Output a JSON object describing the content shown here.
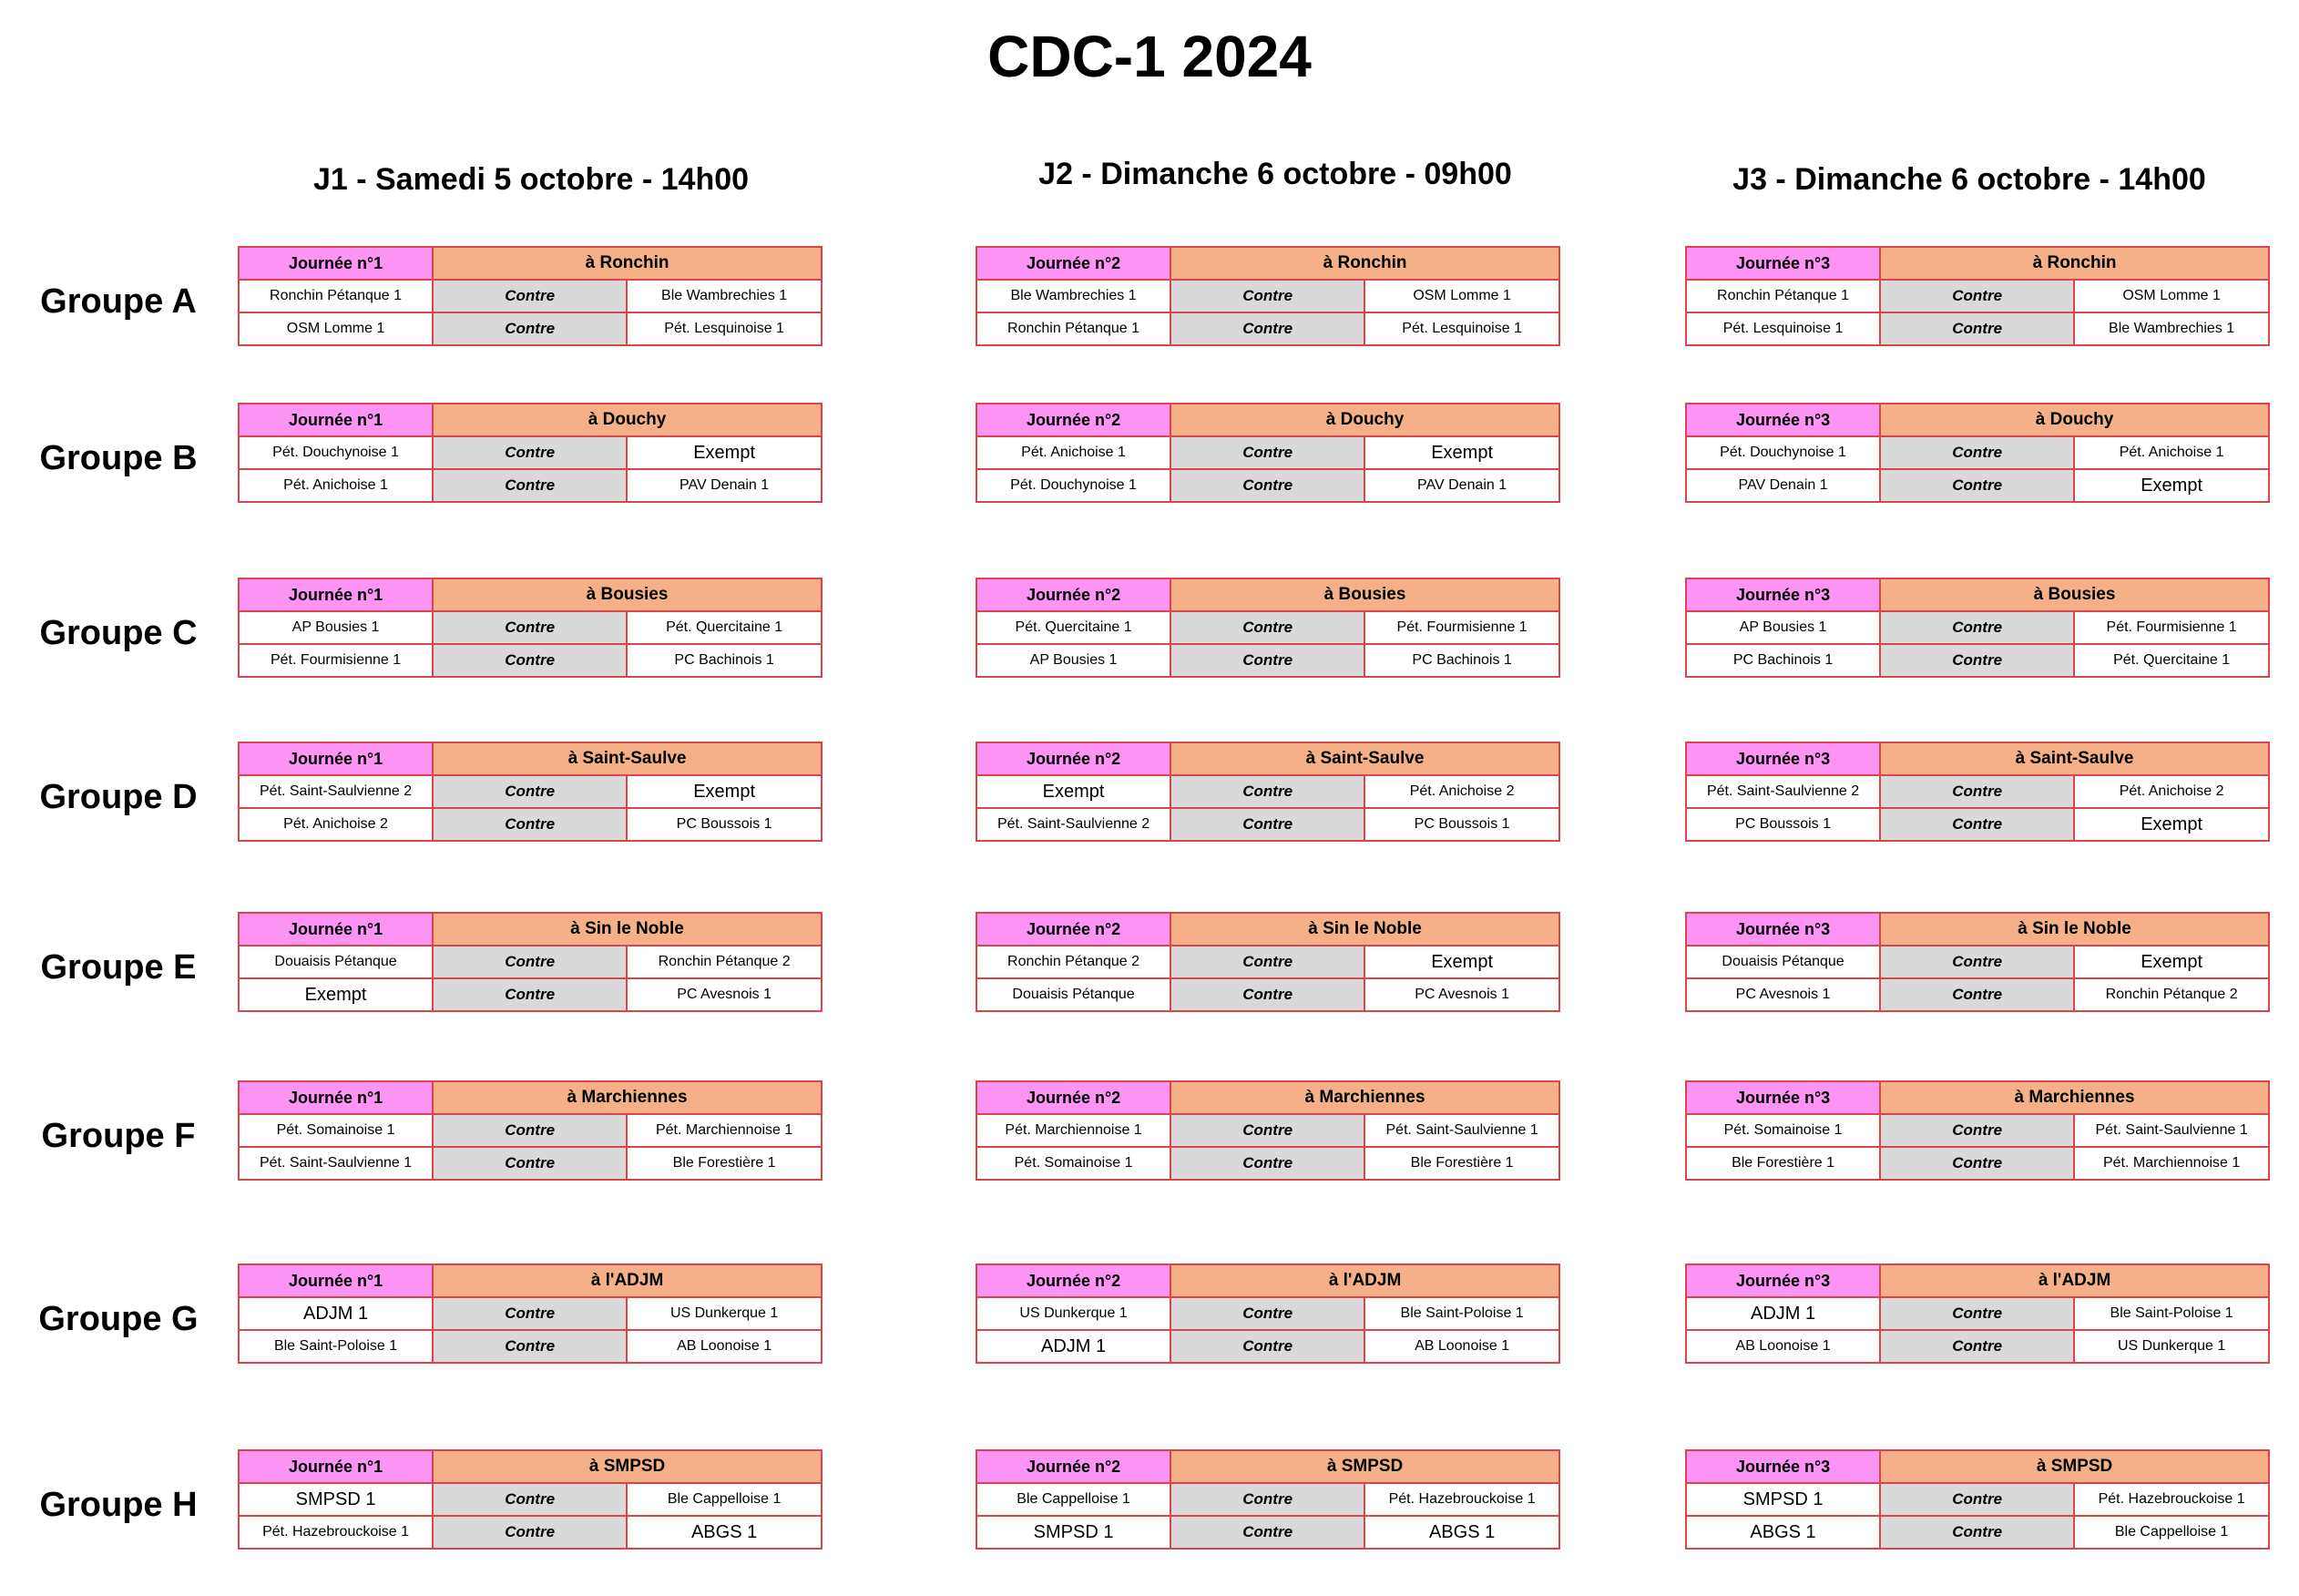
{
  "title": "CDC-1 2024",
  "days": [
    "J1 - Samedi 5 octobre - 14h00",
    "J2 - Dimanche 6 octobre - 09h00",
    "J3 - Dimanche 6 octobre - 14h00"
  ],
  "groups": [
    {
      "name": "Groupe A",
      "tables": [
        {
          "journee": "Journée n°1",
          "venue": "à Ronchin",
          "matches": [
            {
              "home": "Ronchin Pétanque 1",
              "vs": "Contre",
              "away": "Ble Wambrechies 1"
            },
            {
              "home": "OSM Lomme 1",
              "vs": "Contre",
              "away": "Pét. Lesquinoise 1"
            }
          ]
        },
        {
          "journee": "Journée n°2",
          "venue": "à Ronchin",
          "matches": [
            {
              "home": "Ble Wambrechies 1",
              "vs": "Contre",
              "away": "OSM Lomme 1"
            },
            {
              "home": "Ronchin Pétanque 1",
              "vs": "Contre",
              "away": "Pét. Lesquinoise 1"
            }
          ]
        },
        {
          "journee": "Journée n°3",
          "venue": "à Ronchin",
          "matches": [
            {
              "home": "Ronchin Pétanque 1",
              "vs": "Contre",
              "away": "OSM Lomme 1"
            },
            {
              "home": "Pét. Lesquinoise 1",
              "vs": "Contre",
              "away": "Ble Wambrechies 1"
            }
          ]
        }
      ]
    },
    {
      "name": "Groupe B",
      "tables": [
        {
          "journee": "Journée n°1",
          "venue": "à Douchy",
          "matches": [
            {
              "home": "Pét. Douchynoise 1",
              "vs": "Contre",
              "away": "Exempt"
            },
            {
              "home": "Pét. Anichoise 1",
              "vs": "Contre",
              "away": "PAV Denain 1"
            }
          ]
        },
        {
          "journee": "Journée n°2",
          "venue": "à Douchy",
          "matches": [
            {
              "home": "Pét. Anichoise 1",
              "vs": "Contre",
              "away": "Exempt"
            },
            {
              "home": "Pét. Douchynoise 1",
              "vs": "Contre",
              "away": "PAV Denain 1"
            }
          ]
        },
        {
          "journee": "Journée n°3",
          "venue": "à Douchy",
          "matches": [
            {
              "home": "Pét. Douchynoise 1",
              "vs": "Contre",
              "away": "Pét. Anichoise 1"
            },
            {
              "home": "PAV Denain 1",
              "vs": "Contre",
              "away": "Exempt"
            }
          ]
        }
      ]
    },
    {
      "name": "Groupe C",
      "tables": [
        {
          "journee": "Journée n°1",
          "venue": "à Bousies",
          "matches": [
            {
              "home": "AP Bousies 1",
              "vs": "Contre",
              "away": "Pét. Quercitaine 1"
            },
            {
              "home": "Pét. Fourmisienne 1",
              "vs": "Contre",
              "away": "PC Bachinois 1"
            }
          ]
        },
        {
          "journee": "Journée n°2",
          "venue": "à Bousies",
          "matches": [
            {
              "home": "Pét. Quercitaine 1",
              "vs": "Contre",
              "away": "Pét. Fourmisienne 1"
            },
            {
              "home": "AP Bousies 1",
              "vs": "Contre",
              "away": "PC Bachinois 1"
            }
          ]
        },
        {
          "journee": "Journée n°3",
          "venue": "à Bousies",
          "matches": [
            {
              "home": "AP Bousies 1",
              "vs": "Contre",
              "away": "Pét. Fourmisienne 1"
            },
            {
              "home": "PC Bachinois 1",
              "vs": "Contre",
              "away": "Pét. Quercitaine 1"
            }
          ]
        }
      ]
    },
    {
      "name": "Groupe D",
      "tables": [
        {
          "journee": "Journée n°1",
          "venue": "à Saint-Saulve",
          "matches": [
            {
              "home": "Pét. Saint-Saulvienne 2",
              "vs": "Contre",
              "away": "Exempt"
            },
            {
              "home": "Pét. Anichoise 2",
              "vs": "Contre",
              "away": "PC Boussois 1"
            }
          ]
        },
        {
          "journee": "Journée n°2",
          "venue": "à Saint-Saulve",
          "matches": [
            {
              "home": "Exempt",
              "vs": "Contre",
              "away": "Pét. Anichoise 2"
            },
            {
              "home": "Pét. Saint-Saulvienne 2",
              "vs": "Contre",
              "away": "PC Boussois 1"
            }
          ]
        },
        {
          "journee": "Journée n°3",
          "venue": "à Saint-Saulve",
          "matches": [
            {
              "home": "Pét. Saint-Saulvienne 2",
              "vs": "Contre",
              "away": "Pét. Anichoise 2"
            },
            {
              "home": "PC Boussois 1",
              "vs": "Contre",
              "away": "Exempt"
            }
          ]
        }
      ]
    },
    {
      "name": "Groupe E",
      "tables": [
        {
          "journee": "Journée n°1",
          "venue": "à Sin le Noble",
          "matches": [
            {
              "home": "Douaisis Pétanque",
              "vs": "Contre",
              "away": "Ronchin Pétanque 2"
            },
            {
              "home": "Exempt",
              "vs": "Contre",
              "away": "PC Avesnois 1"
            }
          ]
        },
        {
          "journee": "Journée n°2",
          "venue": "à Sin le Noble",
          "matches": [
            {
              "home": "Ronchin Pétanque 2",
              "vs": "Contre",
              "away": "Exempt"
            },
            {
              "home": "Douaisis Pétanque",
              "vs": "Contre",
              "away": "PC Avesnois 1"
            }
          ]
        },
        {
          "journee": "Journée n°3",
          "venue": "à Sin le Noble",
          "matches": [
            {
              "home": "Douaisis Pétanque",
              "vs": "Contre",
              "away": "Exempt"
            },
            {
              "home": "PC Avesnois 1",
              "vs": "Contre",
              "away": "Ronchin Pétanque 2"
            }
          ]
        }
      ]
    },
    {
      "name": "Groupe F",
      "tables": [
        {
          "journee": "Journée n°1",
          "venue": "à Marchiennes",
          "matches": [
            {
              "home": "Pét. Somainoise 1",
              "vs": "Contre",
              "away": "Pét. Marchiennoise 1"
            },
            {
              "home": "Pét. Saint-Saulvienne 1",
              "vs": "Contre",
              "away": "Ble Forestière 1"
            }
          ]
        },
        {
          "journee": "Journée n°2",
          "venue": "à Marchiennes",
          "matches": [
            {
              "home": "Pét. Marchiennoise 1",
              "vs": "Contre",
              "away": "Pét. Saint-Saulvienne 1"
            },
            {
              "home": "Pét. Somainoise 1",
              "vs": "Contre",
              "away": "Ble Forestière 1"
            }
          ]
        },
        {
          "journee": "Journée n°3",
          "venue": "à Marchiennes",
          "matches": [
            {
              "home": "Pét. Somainoise 1",
              "vs": "Contre",
              "away": "Pét. Saint-Saulvienne 1"
            },
            {
              "home": "Ble Forestière 1",
              "vs": "Contre",
              "away": "Pét. Marchiennoise 1"
            }
          ]
        }
      ]
    },
    {
      "name": "Groupe G",
      "tables": [
        {
          "journee": "Journée n°1",
          "venue": "à l'ADJM",
          "matches": [
            {
              "home": "ADJM 1",
              "vs": "Contre",
              "away": "US Dunkerque 1"
            },
            {
              "home": "Ble Saint-Poloise 1",
              "vs": "Contre",
              "away": "AB Loonoise 1"
            }
          ]
        },
        {
          "journee": "Journée n°2",
          "venue": "à l'ADJM",
          "matches": [
            {
              "home": "US Dunkerque 1",
              "vs": "Contre",
              "away": "Ble Saint-Poloise 1"
            },
            {
              "home": "ADJM 1",
              "vs": "Contre",
              "away": "AB Loonoise 1"
            }
          ]
        },
        {
          "journee": "Journée n°3",
          "venue": "à l'ADJM",
          "matches": [
            {
              "home": "ADJM 1",
              "vs": "Contre",
              "away": "Ble Saint-Poloise 1"
            },
            {
              "home": "AB Loonoise 1",
              "vs": "Contre",
              "away": "US Dunkerque 1"
            }
          ]
        }
      ]
    },
    {
      "name": "Groupe H",
      "tables": [
        {
          "journee": "Journée n°1",
          "venue": "à SMPSD",
          "matches": [
            {
              "home": "SMPSD 1",
              "vs": "Contre",
              "away": "Ble Cappelloise 1"
            },
            {
              "home": "Pét. Hazebrouckoise 1",
              "vs": "Contre",
              "away": "ABGS 1"
            }
          ]
        },
        {
          "journee": "Journée n°2",
          "venue": "à SMPSD",
          "matches": [
            {
              "home": "Ble Cappelloise 1",
              "vs": "Contre",
              "away": "Pét. Hazebrouckoise 1"
            },
            {
              "home": "SMPSD 1",
              "vs": "Contre",
              "away": "ABGS 1"
            }
          ]
        },
        {
          "journee": "Journée n°3",
          "venue": "à SMPSD",
          "matches": [
            {
              "home": "SMPSD 1",
              "vs": "Contre",
              "away": "Pét. Hazebrouckoise 1"
            },
            {
              "home": "ABGS 1",
              "vs": "Contre",
              "away": "Ble Cappelloise 1"
            }
          ]
        }
      ]
    }
  ]
}
